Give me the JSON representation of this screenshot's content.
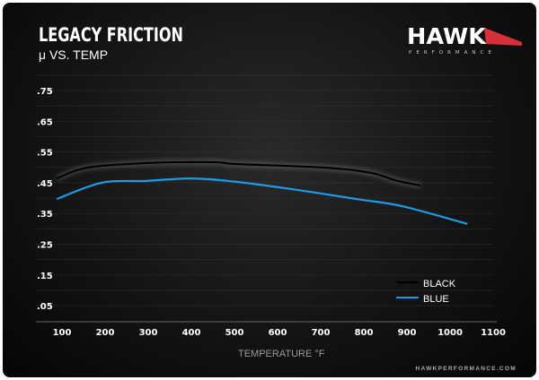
{
  "header": {
    "title": "LEGACY FRICTION",
    "subtitle": "μ VS. TEMP"
  },
  "brand": {
    "name": "HAWK",
    "tagline": "PERFORMANCE",
    "website": "HAWKPERFORMANCE.COM",
    "accent_color": "#d6313a"
  },
  "chart_data": {
    "type": "line",
    "title": "LEGACY FRICTION",
    "subtitle": "μ VS. TEMP",
    "xlabel": "TEMPERATURE °F",
    "ylabel": "",
    "xlim": [
      100,
      1100
    ],
    "ylim": [
      0.05,
      0.75
    ],
    "x_ticks": [
      "100",
      "200",
      "300",
      "400",
      "500",
      "600",
      "700",
      "800",
      "900",
      "1000",
      "1100"
    ],
    "y_ticks": [
      ".75",
      ".65",
      ".55",
      ".45",
      ".35",
      ".25",
      ".15",
      ".05"
    ],
    "grid": true,
    "legend": "bottom-right",
    "series": [
      {
        "name": "BLACK",
        "color": "#000000",
        "x": [
          88,
          158,
          296,
          450,
          504,
          712,
          817,
          873,
          931
        ],
        "y": [
          0.464,
          0.499,
          0.514,
          0.517,
          0.511,
          0.499,
          0.482,
          0.458,
          0.441
        ]
      },
      {
        "name": "BLUE",
        "color": "#1e9be6",
        "x": [
          88,
          192,
          296,
          400,
          504,
          644,
          783,
          888,
          1040
        ],
        "y": [
          0.397,
          0.45,
          0.456,
          0.464,
          0.453,
          0.427,
          0.397,
          0.374,
          0.316
        ]
      }
    ]
  }
}
